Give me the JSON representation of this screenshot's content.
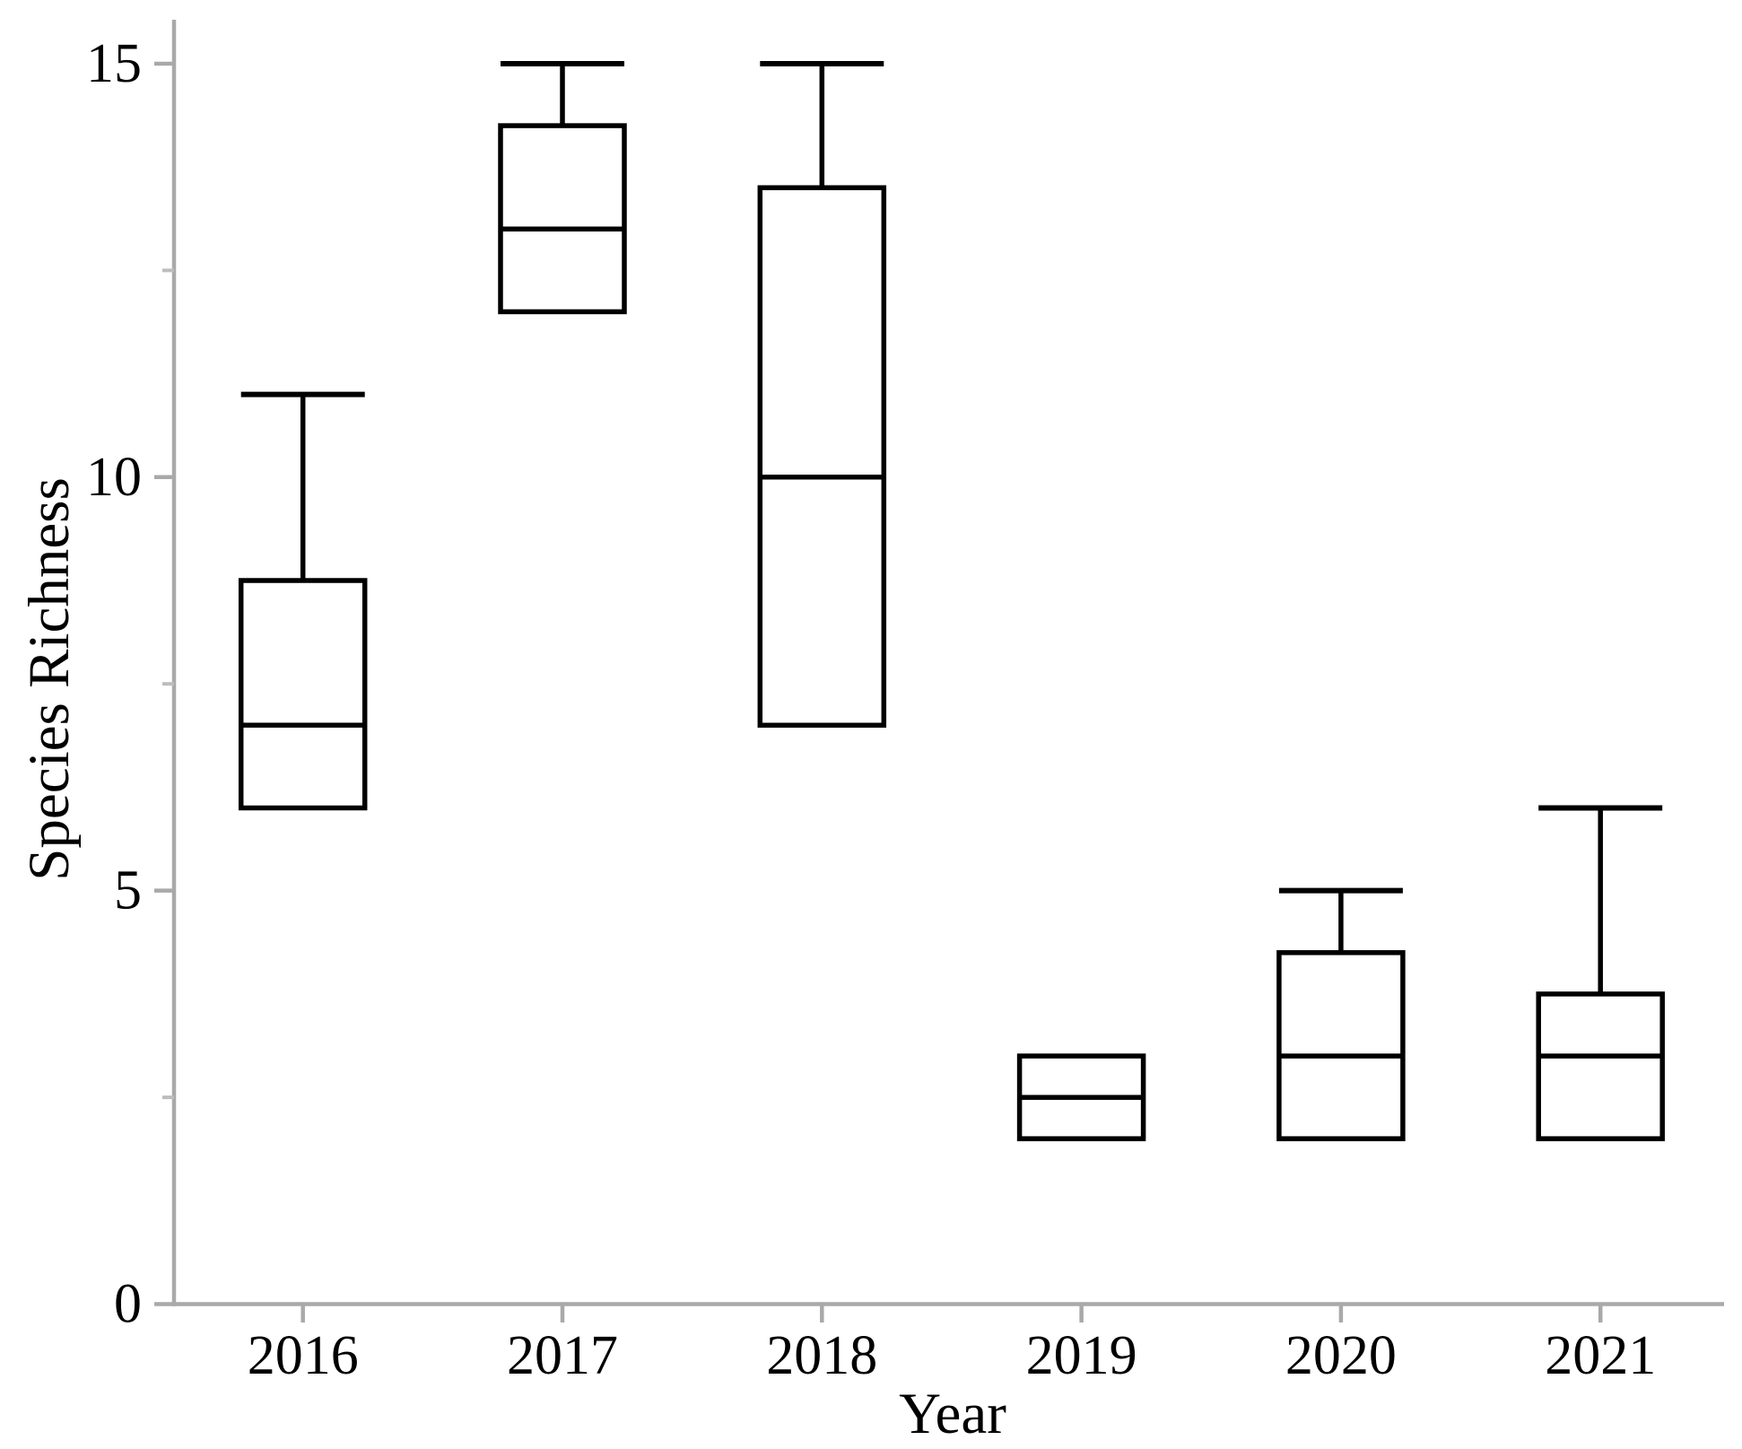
{
  "chart_data": {
    "type": "boxplot",
    "title": "",
    "xlabel": "Year",
    "ylabel": "Species Richness",
    "categories": [
      "2016",
      "2017",
      "2018",
      "2019",
      "2020",
      "2021"
    ],
    "y_ticks": [
      0,
      5,
      10,
      15
    ],
    "y_minor_ticks": [
      2.5,
      7.5,
      12.5
    ],
    "ylim": [
      0,
      15.5
    ],
    "grid": "off",
    "legend": "none",
    "series": [
      {
        "category": "2016",
        "min": 6,
        "q1": 6,
        "median": 7,
        "q3": 8.75,
        "max": 11
      },
      {
        "category": "2017",
        "min": 12,
        "q1": 12,
        "median": 13,
        "q3": 14.25,
        "max": 15
      },
      {
        "category": "2018",
        "min": 7,
        "q1": 7,
        "median": 10,
        "q3": 13.5,
        "max": 15
      },
      {
        "category": "2019",
        "min": 2,
        "q1": 2,
        "median": 2.5,
        "q3": 3,
        "max": 3
      },
      {
        "category": "2020",
        "min": 2,
        "q1": 2,
        "median": 3,
        "q3": 4.25,
        "max": 5
      },
      {
        "category": "2021",
        "min": 2,
        "q1": 2,
        "median": 3,
        "q3": 3.75,
        "max": 6
      }
    ],
    "colors": {
      "box_stroke": "#000000",
      "box_fill": "#ffffff",
      "axis": "#a9a9a9",
      "minor_tick": "#bdbdbd",
      "text": "#000000"
    }
  }
}
